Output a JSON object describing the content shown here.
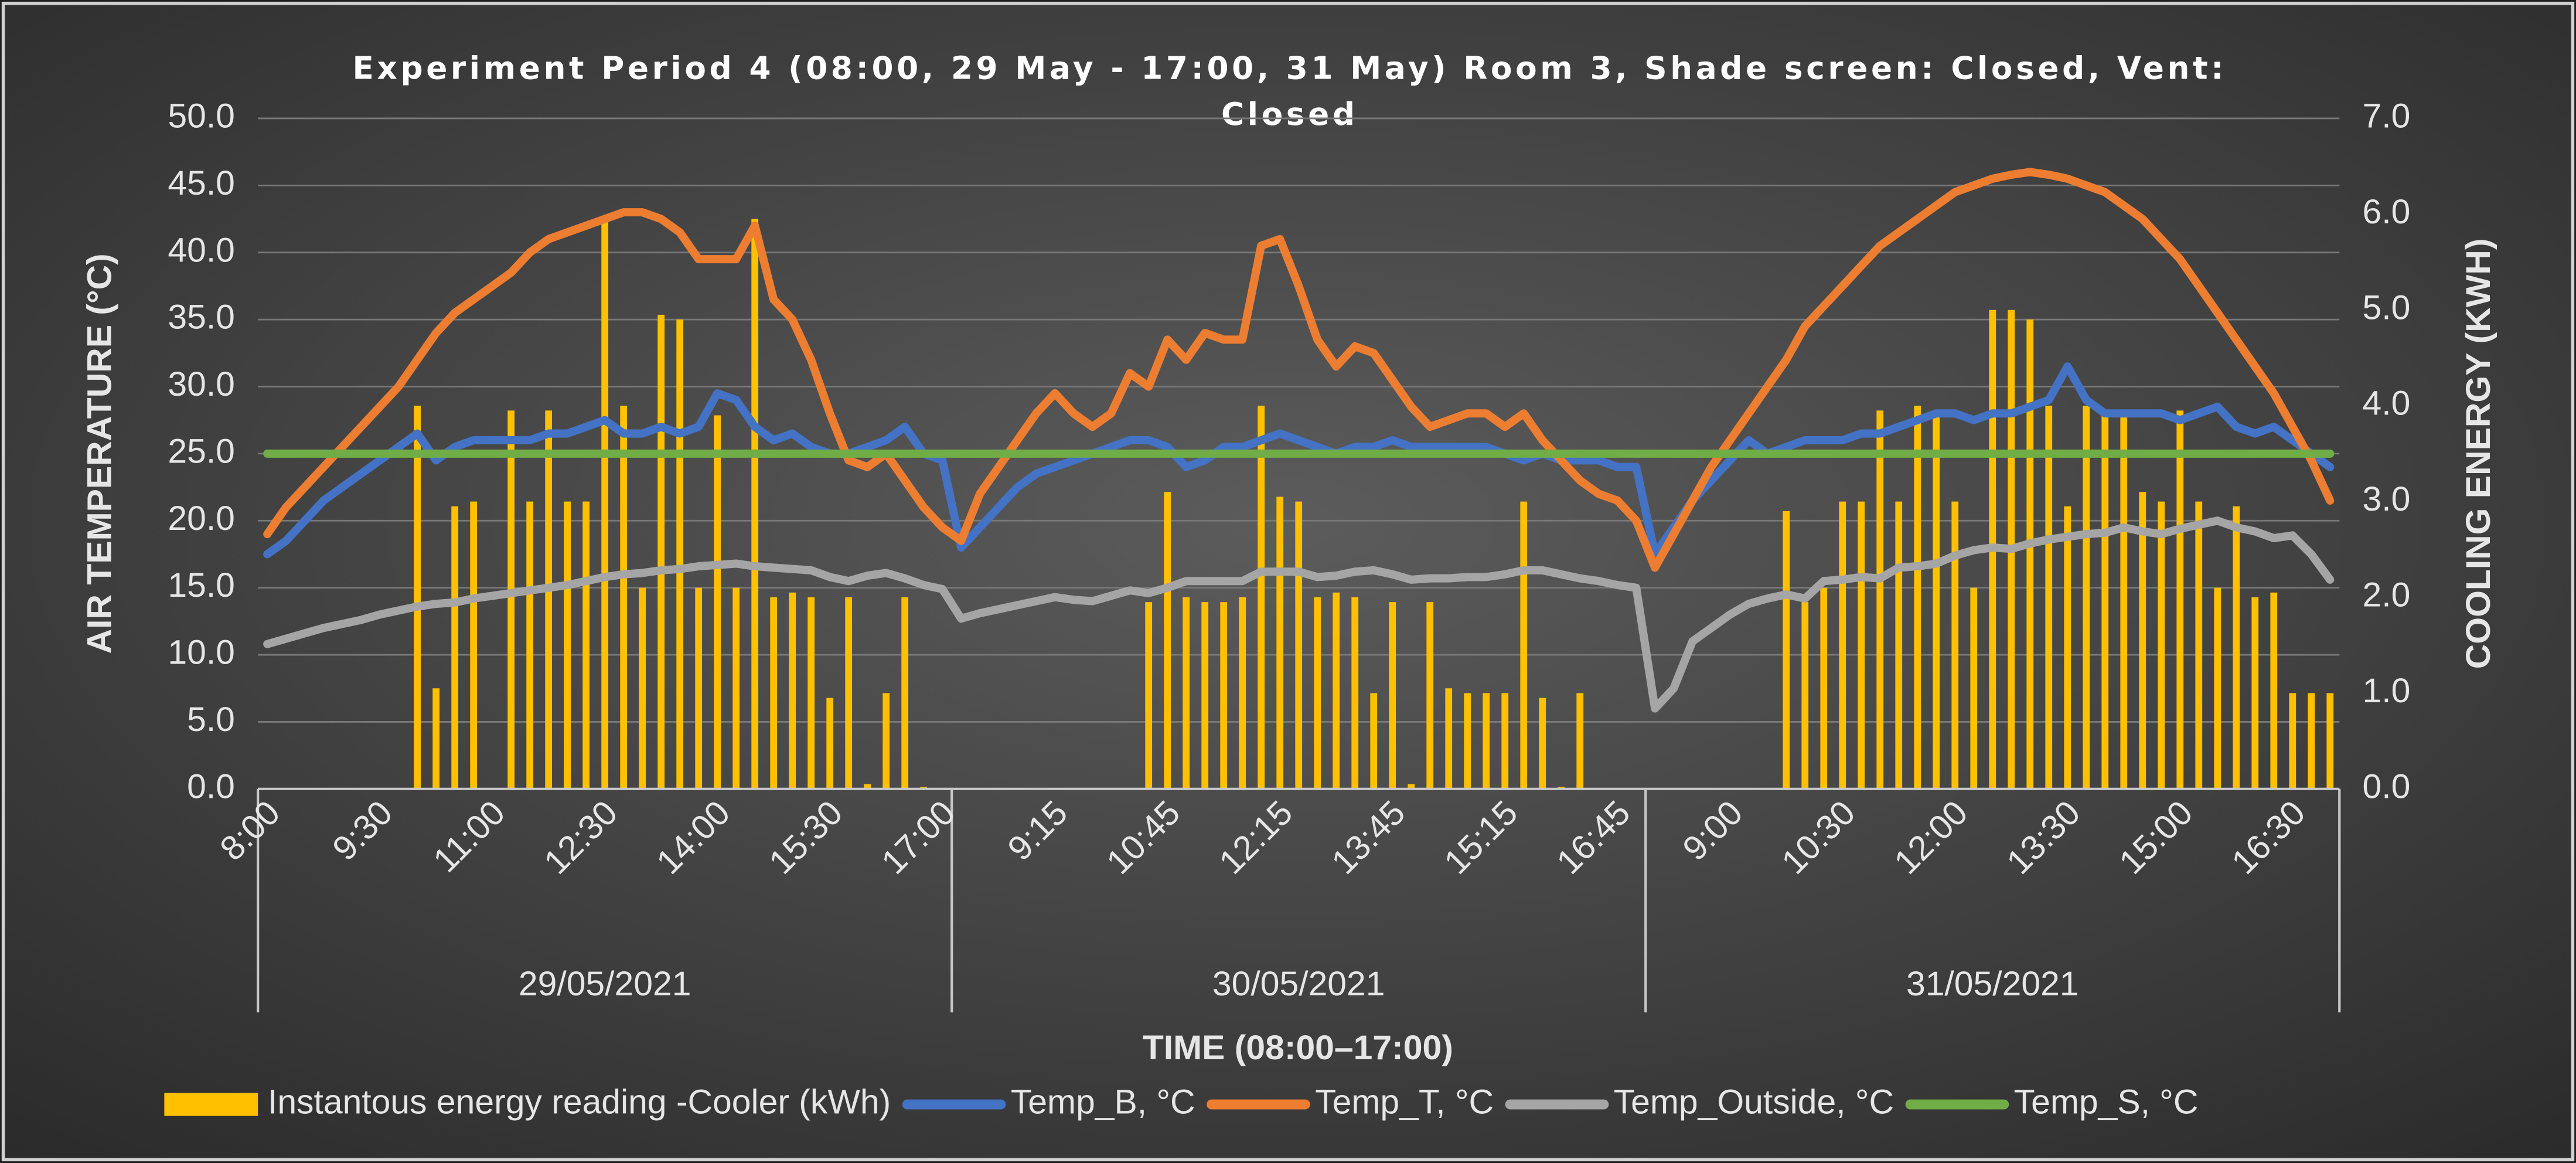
{
  "chart_data": {
    "type": "combo",
    "title": "Experiment Period 4 (08:00, 29 May - 17:00, 31 May) Room 3, Shade screen: Closed, Vent: Closed",
    "xlabel": "TIME (08:00–17:00)",
    "ylabel": "AIR TEMPERATURE (°C)",
    "y2label": "COOLING ENERGY (KWH)",
    "groups": [
      "29/05/2021",
      "30/05/2021",
      "31/05/2021"
    ],
    "categories": [
      "8:00",
      null,
      null,
      null,
      null,
      null,
      "9:30",
      null,
      null,
      null,
      null,
      null,
      "11:00",
      null,
      null,
      null,
      null,
      null,
      "12:30",
      null,
      null,
      null,
      null,
      null,
      "14:00",
      null,
      null,
      null,
      null,
      null,
      "15:30",
      null,
      null,
      null,
      null,
      null,
      "17:00",
      null,
      null,
      null,
      null,
      null,
      "9:15",
      null,
      null,
      null,
      null,
      null,
      "10:45",
      null,
      null,
      null,
      null,
      null,
      "12:15",
      null,
      null,
      null,
      null,
      null,
      "13:45",
      null,
      null,
      null,
      null,
      null,
      "15:15",
      null,
      null,
      null,
      null,
      null,
      "16:45",
      null,
      null,
      null,
      null,
      null,
      "9:00",
      null,
      null,
      null,
      null,
      null,
      "10:30",
      null,
      null,
      null,
      null,
      null,
      "12:00",
      null,
      null,
      null,
      null,
      null,
      "13:30",
      null,
      null,
      null,
      null,
      null,
      "15:00",
      null,
      null,
      null,
      null,
      null,
      "16:30",
      null,
      null
    ],
    "ylim": [
      0,
      50
    ],
    "yticks": [
      {
        "value": 0,
        "label": "0.0"
      },
      {
        "value": 5,
        "label": "5.0"
      },
      {
        "value": 10,
        "label": "10.0"
      },
      {
        "value": 15,
        "label": "15.0"
      },
      {
        "value": 20,
        "label": "20.0"
      },
      {
        "value": 25,
        "label": "25.0"
      },
      {
        "value": 30,
        "label": "30.0"
      },
      {
        "value": 35,
        "label": "35.0"
      },
      {
        "value": 40,
        "label": "40.0"
      },
      {
        "value": 45,
        "label": "45.0"
      },
      {
        "value": 50,
        "label": "50.0"
      }
    ],
    "y2lim": [
      0,
      7
    ],
    "y2ticks": [
      {
        "value": 0,
        "label": "0.0"
      },
      {
        "value": 1,
        "label": "1.0"
      },
      {
        "value": 2,
        "label": "2.0"
      },
      {
        "value": 3,
        "label": "3.0"
      },
      {
        "value": 4,
        "label": "4.0"
      },
      {
        "value": 5,
        "label": "5.0"
      },
      {
        "value": 6,
        "label": "6.0"
      },
      {
        "value": 7,
        "label": "7.0"
      }
    ],
    "grid": true,
    "legend": "bottom",
    "series": [
      {
        "name": "Instantous energy reading -Cooler (kWh)",
        "type": "bar",
        "axis": "y2",
        "color": "#ffc000",
        "values": [
          0,
          0,
          0,
          0,
          0,
          0,
          0,
          0,
          4.0,
          1.05,
          2.95,
          3.0,
          0,
          3.95,
          3.0,
          3.95,
          3.0,
          3.0,
          5.95,
          4.0,
          2.1,
          4.95,
          4.9,
          2.1,
          3.9,
          2.1,
          5.95,
          2.0,
          2.05,
          2.0,
          0.95,
          2.0,
          0.05,
          1.0,
          2.0,
          0.02,
          0,
          0,
          0,
          0,
          0,
          0,
          0,
          0,
          0,
          0,
          0,
          1.95,
          3.1,
          2.0,
          1.95,
          1.95,
          2.0,
          4.0,
          3.05,
          3.0,
          2.0,
          2.05,
          2.0,
          1.0,
          1.95,
          0.05,
          1.95,
          1.05,
          1.0,
          1.0,
          1.0,
          3.0,
          0.95,
          0.02,
          1.0,
          0,
          0,
          0,
          0,
          0,
          0,
          0,
          0,
          0,
          0,
          2.9,
          1.95,
          2.1,
          3.0,
          3.0,
          3.95,
          3.0,
          4.0,
          3.95,
          3.0,
          2.1,
          5.0,
          5.0,
          4.9,
          4.0,
          2.95,
          4.0,
          3.95,
          3.95,
          3.1,
          3.0,
          3.95,
          3.0,
          2.1,
          2.95,
          2.0,
          2.05,
          1.0,
          1.0,
          1.0
        ]
      },
      {
        "name": "Temp_B, °C",
        "type": "line",
        "color": "#4472c4",
        "values": [
          17.5,
          18.5,
          20,
          21.5,
          22.5,
          23.5,
          24.5,
          25.5,
          26.5,
          24.5,
          25.5,
          26,
          26,
          26,
          26,
          26.5,
          26.5,
          27,
          27.5,
          26.5,
          26.5,
          27,
          26.5,
          27,
          29.5,
          29,
          27,
          26,
          26.5,
          25.5,
          25,
          25,
          25.5,
          26,
          27,
          25,
          24.5,
          18,
          19.5,
          21,
          22.5,
          23.5,
          24,
          24.5,
          25,
          25.5,
          26,
          26,
          25.5,
          24,
          24.5,
          25.5,
          25.5,
          26,
          26.5,
          26,
          25.5,
          25,
          25.5,
          25.5,
          26,
          25.5,
          25.5,
          25.5,
          25.5,
          25.5,
          25,
          24.5,
          25,
          24.5,
          24.5,
          24.5,
          24,
          24,
          17.5,
          19.5,
          21.5,
          23,
          24.5,
          26,
          25,
          25.5,
          26,
          26,
          26,
          26.5,
          26.5,
          27,
          27.5,
          28,
          28,
          27.5,
          28,
          28,
          28.5,
          29,
          31.5,
          29,
          28,
          28,
          28,
          28,
          27.5,
          28,
          28.5,
          27,
          26.5,
          27,
          26,
          25,
          24
        ]
      },
      {
        "name": "Temp_T, °C",
        "type": "line",
        "color": "#ed7d31",
        "values": [
          19,
          21,
          22.5,
          24,
          25.5,
          27,
          28.5,
          30,
          32,
          34,
          35.5,
          36.5,
          37.5,
          38.5,
          40,
          41,
          41.5,
          42,
          42.5,
          43,
          43,
          42.5,
          41.5,
          39.5,
          39.5,
          39.5,
          42,
          36.5,
          35,
          32,
          28,
          24.5,
          24,
          25,
          23,
          21,
          19.5,
          18.5,
          22,
          24,
          26,
          28,
          29.5,
          28,
          27,
          28,
          31,
          30,
          33.5,
          32,
          34,
          33.5,
          33.5,
          40.5,
          41,
          37.5,
          33.5,
          31.5,
          33,
          32.5,
          30.5,
          28.5,
          27,
          27.5,
          28,
          28,
          27,
          28,
          26,
          24.5,
          23,
          22,
          21.5,
          20,
          16.5,
          19,
          21.5,
          24,
          26,
          28,
          30,
          32,
          34.5,
          36,
          37.5,
          39,
          40.5,
          41.5,
          42.5,
          43.5,
          44.5,
          45,
          45.5,
          45.8,
          46,
          45.8,
          45.5,
          45,
          44.5,
          43.5,
          42.5,
          41,
          39.5,
          37.5,
          35.5,
          33.5,
          31.5,
          29.5,
          27,
          24.5,
          21.5
        ]
      },
      {
        "name": "Temp_Outside, °C",
        "type": "line",
        "color": "#a5a5a5",
        "values": [
          10.8,
          11.2,
          11.6,
          12,
          12.3,
          12.6,
          13,
          13.3,
          13.6,
          13.8,
          13.9,
          14.2,
          14.4,
          14.6,
          14.8,
          15,
          15.2,
          15.5,
          15.8,
          16,
          16.1,
          16.3,
          16.4,
          16.6,
          16.7,
          16.8,
          16.6,
          16.5,
          16.4,
          16.3,
          15.8,
          15.5,
          15.9,
          16.1,
          15.7,
          15.2,
          14.9,
          12.7,
          13.1,
          13.4,
          13.7,
          14,
          14.3,
          14.1,
          14,
          14.4,
          14.8,
          14.6,
          15,
          15.5,
          15.5,
          15.5,
          15.5,
          16.2,
          16.2,
          16.2,
          15.8,
          15.9,
          16.2,
          16.3,
          16,
          15.6,
          15.7,
          15.7,
          15.8,
          15.8,
          16,
          16.3,
          16.3,
          16,
          15.7,
          15.5,
          15.2,
          15,
          6,
          7.5,
          11,
          12,
          13,
          13.8,
          14.2,
          14.5,
          14.2,
          15.5,
          15.6,
          15.8,
          15.7,
          16.5,
          16.6,
          16.8,
          17.4,
          17.8,
          18,
          17.9,
          18.3,
          18.6,
          18.8,
          19,
          19.1,
          19.5,
          19.2,
          19,
          19.4,
          19.7,
          20,
          19.5,
          19.2,
          18.7,
          18.9,
          17.5,
          15.6
        ]
      },
      {
        "name": "Temp_S, °C",
        "type": "line",
        "color": "#70ad47",
        "values": [
          25,
          25,
          25,
          25,
          25,
          25,
          25,
          25,
          25,
          25,
          25,
          25,
          25,
          25,
          25,
          25,
          25,
          25,
          25,
          25,
          25,
          25,
          25,
          25,
          25,
          25,
          25,
          25,
          25,
          25,
          25,
          25,
          25,
          25,
          25,
          25,
          25,
          25,
          25,
          25,
          25,
          25,
          25,
          25,
          25,
          25,
          25,
          25,
          25,
          25,
          25,
          25,
          25,
          25,
          25,
          25,
          25,
          25,
          25,
          25,
          25,
          25,
          25,
          25,
          25,
          25,
          25,
          25,
          25,
          25,
          25,
          25,
          25,
          25,
          25,
          25,
          25,
          25,
          25,
          25,
          25,
          25,
          25,
          25,
          25,
          25,
          25,
          25,
          25,
          25,
          25,
          25,
          25,
          25,
          25,
          25,
          25,
          25,
          25,
          25,
          25,
          25,
          25,
          25,
          25,
          25,
          25,
          25,
          25,
          25,
          25
        ]
      }
    ]
  }
}
